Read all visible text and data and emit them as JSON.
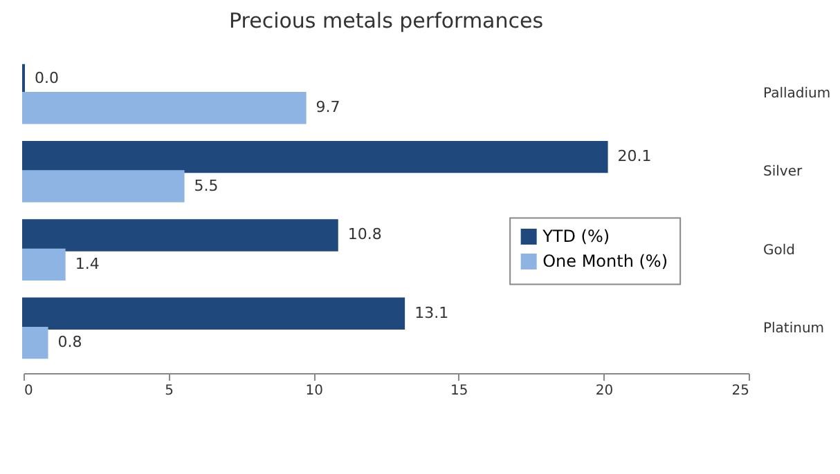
{
  "chart_data": {
    "type": "bar",
    "orientation": "horizontal",
    "title": "Precious metals performances",
    "categories": [
      "Palladium",
      "Silver",
      "Gold",
      "Platinum"
    ],
    "series": [
      {
        "name": "YTD (%)",
        "color": "#1f497d",
        "values": [
          0,
          20.1,
          10.8,
          13.1
        ],
        "value_labels": [
          "0.0",
          "20.1",
          "10.8",
          "13.1"
        ]
      },
      {
        "name": "One Month (%)",
        "color": "#8db4e2",
        "values": [
          9.7,
          5.5,
          1.4,
          0.8
        ],
        "value_labels": [
          "9.7",
          "5.5",
          "1.4",
          "0.8"
        ]
      }
    ],
    "xlim": [
      0,
      25
    ],
    "xticks": [
      0,
      5,
      10,
      15,
      20,
      25
    ],
    "grid": false,
    "legend": "right"
  }
}
